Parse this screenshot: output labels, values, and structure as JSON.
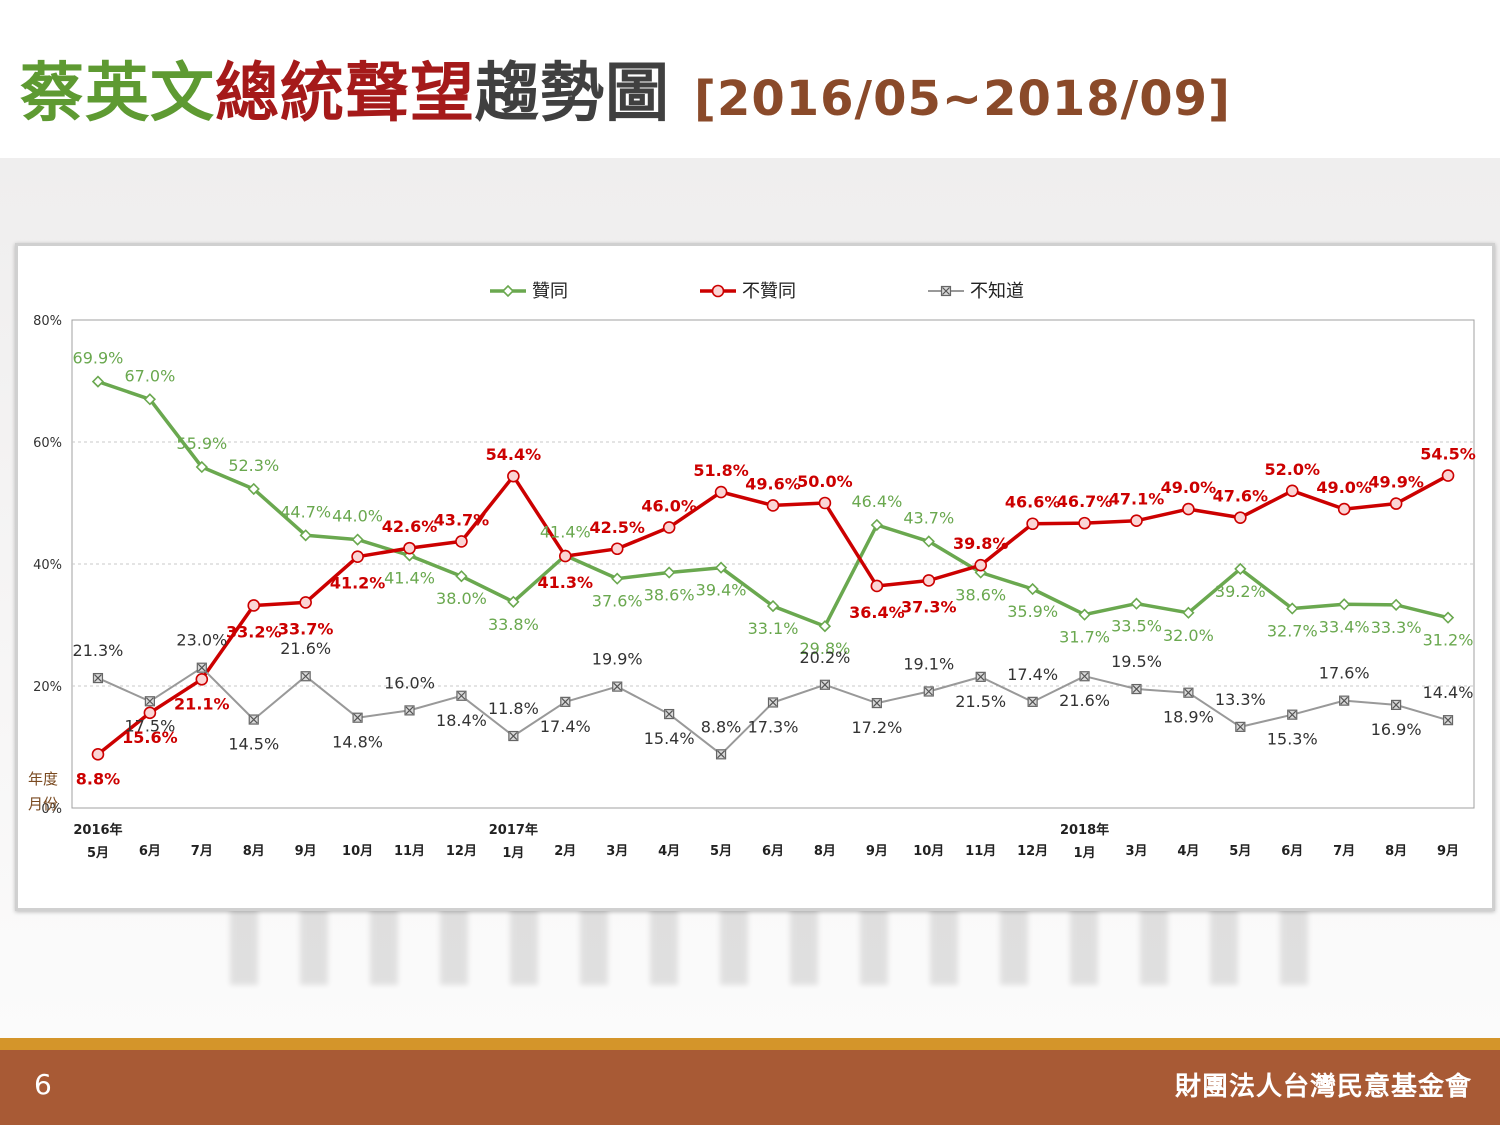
{
  "header": {
    "title_name": "蔡英文",
    "title_role": "總統聲望",
    "title_rest": "趨勢圖",
    "title_range": "[2016/05~2018/09]"
  },
  "footer": {
    "page_number": "6",
    "organization": "財團法人台灣民意基金會"
  },
  "colors": {
    "approve": "#6aa84f",
    "disapprove": "#cc0000",
    "unknown": "#999999"
  },
  "chart_data": {
    "type": "line",
    "ylim": [
      0,
      80
    ],
    "y_ticks": [
      "0%",
      "20%",
      "40%",
      "60%",
      "80%"
    ],
    "axis_corner_labels": [
      "年度",
      "月份"
    ],
    "legend_position": "top-center",
    "grid": true,
    "categories": [
      [
        "2016年",
        "5月"
      ],
      [
        "",
        "6月"
      ],
      [
        "",
        "7月"
      ],
      [
        "",
        "8月"
      ],
      [
        "",
        "9月"
      ],
      [
        "",
        "10月"
      ],
      [
        "",
        "11月"
      ],
      [
        "",
        "12月"
      ],
      [
        "2017年",
        "1月"
      ],
      [
        "",
        "2月"
      ],
      [
        "",
        "3月"
      ],
      [
        "",
        "4月"
      ],
      [
        "",
        "5月"
      ],
      [
        "",
        "6月"
      ],
      [
        "",
        "8月"
      ],
      [
        "",
        "9月"
      ],
      [
        "",
        "10月"
      ],
      [
        "",
        "11月"
      ],
      [
        "",
        "12月"
      ],
      [
        "2018年",
        "1月"
      ],
      [
        "",
        "3月"
      ],
      [
        "",
        "4月"
      ],
      [
        "",
        "5月"
      ],
      [
        "",
        "6月"
      ],
      [
        "",
        "7月"
      ],
      [
        "",
        "8月"
      ],
      [
        "",
        "9月"
      ]
    ],
    "series": [
      {
        "name": "贊同",
        "marker": "diamond",
        "values": [
          69.9,
          67.0,
          55.9,
          52.3,
          44.7,
          44.0,
          41.4,
          38.0,
          33.8,
          41.4,
          37.6,
          38.6,
          39.4,
          33.1,
          29.8,
          46.4,
          43.7,
          38.6,
          35.9,
          31.7,
          33.5,
          32.0,
          39.2,
          32.7,
          33.4,
          33.3,
          31.2
        ],
        "labels": [
          "69.9%",
          "67.0%",
          "55.9%",
          "52.3%",
          "44.7%",
          "44.0%",
          "41.4%",
          "38.0%",
          "33.8%",
          "41.4%",
          "37.6%",
          "38.6%",
          "39.4%",
          "33.1%",
          "29.8%",
          "46.4%",
          "43.7%",
          "38.6%",
          "35.9%",
          "31.7%",
          "33.5%",
          "32.0%",
          "39.2%",
          "32.7%",
          "33.4%",
          "33.3%",
          "31.2%"
        ]
      },
      {
        "name": "不贊同",
        "marker": "circle",
        "values": [
          8.8,
          15.6,
          21.1,
          33.2,
          33.7,
          41.2,
          42.6,
          43.7,
          54.4,
          41.3,
          42.5,
          46.0,
          51.8,
          49.6,
          50.0,
          36.4,
          37.3,
          39.8,
          46.6,
          46.7,
          47.1,
          49.0,
          47.6,
          52.0,
          49.0,
          49.9,
          54.5
        ],
        "labels": [
          "8.8%",
          "15.6%",
          "21.1%",
          "33.2%",
          "33.7%",
          "41.2%",
          "42.6%",
          "43.7%",
          "54.4%",
          "41.3%",
          "42.5%",
          "46.0%",
          "51.8%",
          "49.6%",
          "50.0%",
          "36.4%",
          "37.3%",
          "39.8%",
          "46.6%",
          "46.7%",
          "47.1%",
          "49.0%",
          "47.6%",
          "52.0%",
          "49.0%",
          "49.9%",
          "54.5%"
        ]
      },
      {
        "name": "不知道",
        "marker": "square-x",
        "values": [
          21.3,
          17.5,
          23.0,
          14.5,
          21.6,
          14.8,
          16.0,
          18.4,
          11.8,
          17.4,
          19.9,
          15.4,
          8.8,
          17.3,
          20.2,
          17.2,
          19.1,
          21.5,
          17.4,
          21.6,
          19.5,
          18.9,
          13.3,
          15.3,
          17.6,
          16.9,
          14.4
        ],
        "labels": [
          "21.3%",
          "17.5%",
          "23.0%",
          "14.5%",
          "21.6%",
          "14.8%",
          "16.0%",
          "18.4%",
          "11.8%",
          "17.4%",
          "19.9%",
          "15.4%",
          "8.8%",
          "17.3%",
          "20.2%",
          "17.2%",
          "19.1%",
          "21.5%",
          "17.4%",
          "21.6%",
          "19.5%",
          "18.9%",
          "13.3%",
          "15.3%",
          "17.6%",
          "16.9%",
          "14.4%"
        ]
      }
    ]
  }
}
